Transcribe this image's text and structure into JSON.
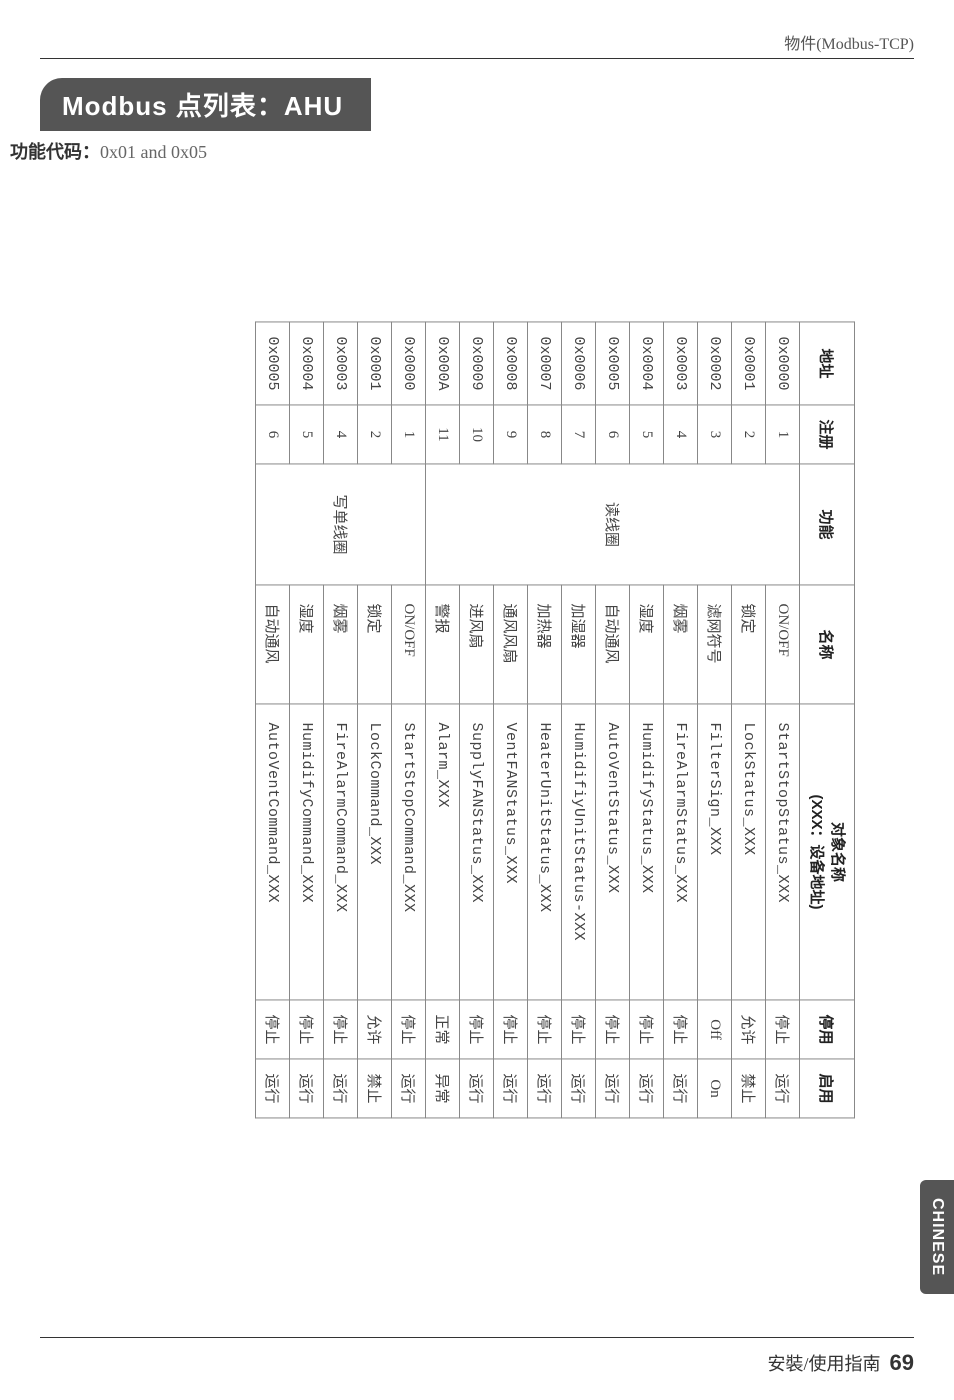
{
  "header_right": "物件(Modbus-TCP)",
  "title": "Modbus 点列表：AHU",
  "subtitle_label": "功能代码：",
  "subtitle_code": "0x01 and 0x05",
  "side_tab": "CHINESE",
  "footer_label": "安裝/使用指南",
  "footer_page": "69",
  "table": {
    "headers": {
      "addr": "地址",
      "reg": "注册",
      "func": "功能",
      "name": "名称",
      "obj_l1": "对象名称",
      "obj_l2": "(XXX：设备地址)",
      "disabled": "停用",
      "enabled": "启用"
    },
    "func_read": "读线圈",
    "func_write": "写单线圈",
    "rows": [
      {
        "addr": "0x0000",
        "reg": "1",
        "name": "ON/OFF",
        "obj": "StartStopStatus_XXX",
        "dis": "停止",
        "en": "运行",
        "grp": "r"
      },
      {
        "addr": "0x0001",
        "reg": "2",
        "name": "锁定",
        "obj": "LockStatus_XXX",
        "dis": "允许",
        "en": "禁止",
        "grp": "r"
      },
      {
        "addr": "0x0002",
        "reg": "3",
        "name": "滤网符号",
        "obj": "FilterSign_XXX",
        "dis": "Off",
        "en": "On",
        "grp": "r"
      },
      {
        "addr": "0x0003",
        "reg": "4",
        "name": "烟雾",
        "obj": "FireAlarmStatus_XXX",
        "dis": "停止",
        "en": "运行",
        "grp": "r"
      },
      {
        "addr": "0x0004",
        "reg": "5",
        "name": "湿度",
        "obj": "HumidifyStatus_XXX",
        "dis": "停止",
        "en": "运行",
        "grp": "r"
      },
      {
        "addr": "0x0005",
        "reg": "6",
        "name": "自动通风",
        "obj": "AutoVentStatus_XXX",
        "dis": "停止",
        "en": "运行",
        "grp": "r"
      },
      {
        "addr": "0x0006",
        "reg": "7",
        "name": "加湿器",
        "obj": "HumidifiyUnitStatus-XXX",
        "dis": "停止",
        "en": "运行",
        "grp": "r"
      },
      {
        "addr": "0x0007",
        "reg": "8",
        "name": "加热器",
        "obj": "HeaterUnitStatus_XXX",
        "dis": "停止",
        "en": "运行",
        "grp": "r"
      },
      {
        "addr": "0x0008",
        "reg": "9",
        "name": "通风风扇",
        "obj": "VentFANStatus_XXX",
        "dis": "停止",
        "en": "运行",
        "grp": "r"
      },
      {
        "addr": "0x0009",
        "reg": "10",
        "name": "进风扇",
        "obj": "SupplyFANStatus_XXX",
        "dis": "停止",
        "en": "运行",
        "grp": "r"
      },
      {
        "addr": "0x000A",
        "reg": "11",
        "name": "警报",
        "obj": "Alarm_XXX",
        "dis": "正常",
        "en": "异常",
        "grp": "r"
      },
      {
        "addr": "0x0000",
        "reg": "1",
        "name": "ON/OFF",
        "obj": "StartStopCommand_XXX",
        "dis": "停止",
        "en": "运行",
        "grp": "w"
      },
      {
        "addr": "0x0001",
        "reg": "2",
        "name": "锁定",
        "obj": "LockCommand_XXX",
        "dis": "允许",
        "en": "禁止",
        "grp": "w"
      },
      {
        "addr": "0x0003",
        "reg": "4",
        "name": "烟雾",
        "obj": "FireAlarmCommand_XXX",
        "dis": "停止",
        "en": "运行",
        "grp": "w"
      },
      {
        "addr": "0x0004",
        "reg": "5",
        "name": "湿度",
        "obj": "HumidifyCommand_XXX",
        "dis": "停止",
        "en": "运行",
        "grp": "w"
      },
      {
        "addr": "0x0005",
        "reg": "6",
        "name": "自动通风",
        "obj": "AutoVentCommand_XXX",
        "dis": "停止",
        "en": "运行",
        "grp": "w"
      }
    ]
  }
}
